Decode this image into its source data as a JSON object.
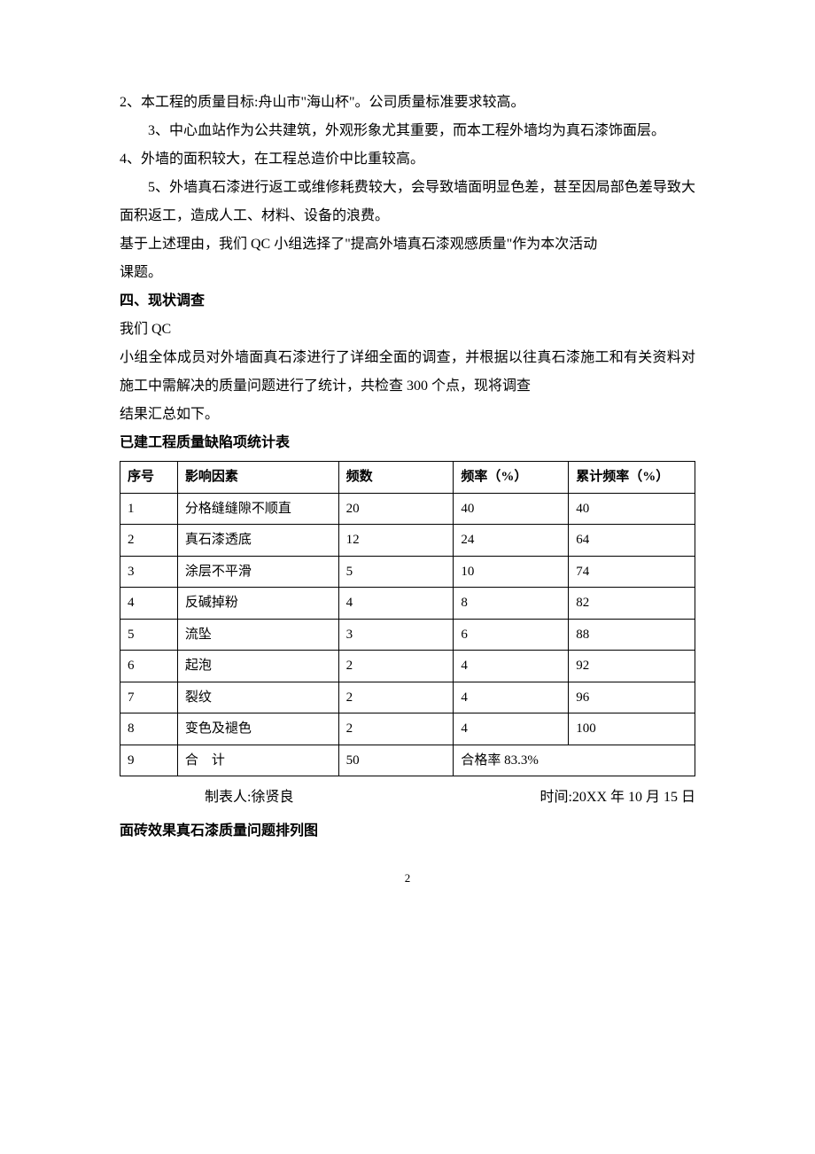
{
  "paragraphs": {
    "p1": "2、本工程的质量目标:舟山市\"海山杯\"。公司质量标准要求较高。",
    "p2": "3、中心血站作为公共建筑，外观形象尤其重要，而本工程外墙均为真石漆饰面层。",
    "p3": "4、外墙的面积较大，在工程总造价中比重较高。",
    "p4": "5、外墙真石漆进行返工或维修耗费较大，会导致墙面明显色差，甚至因局部色差导致大面积返工，造成人工、材料、设备的浪费。",
    "p5": "基于上述理由，我们 QC 小组选择了\"提高外墙真石漆观感质量\"作为本次活动",
    "p6": "课题。",
    "h1": "四、现状调查",
    "p7": "我们 QC",
    "p8": "小组全体成员对外墙面真石漆进行了详细全面的调查，并根据以往真石漆施工和有关资料对施工中需解决的质量问题进行了统计，共检查 300 个点，现将调查",
    "p9": "结果汇总如下。",
    "h2": "已建工程质量缺陷项统计表",
    "h3": "面砖效果真石漆质量问题排列图"
  },
  "table": {
    "headers": {
      "seq": "序号",
      "factor": "影响因素",
      "freq": "频数",
      "rate": "频率（%）",
      "cum": "累计频率（%）"
    },
    "rows": [
      {
        "seq": "1",
        "factor": "分格缝缝隙不顺直",
        "freq": "20",
        "rate": "40",
        "cum": "40"
      },
      {
        "seq": "2",
        "factor": "真石漆透底",
        "freq": "12",
        "rate": "24",
        "cum": "64"
      },
      {
        "seq": "3",
        "factor": "涂层不平滑",
        "freq": "5",
        "rate": "10",
        "cum": "74"
      },
      {
        "seq": "4",
        "factor": "反碱掉粉",
        "freq": "4",
        "rate": "8",
        "cum": "82"
      },
      {
        "seq": "5",
        "factor": "流坠",
        "freq": "3",
        "rate": "6",
        "cum": "88"
      },
      {
        "seq": "6",
        "factor": "起泡",
        "freq": "2",
        "rate": "4",
        "cum": "92"
      },
      {
        "seq": "7",
        "factor": "裂纹",
        "freq": "2",
        "rate": "4",
        "cum": "96"
      },
      {
        "seq": "8",
        "factor": "变色及褪色",
        "freq": "2",
        "rate": "4",
        "cum": "100"
      }
    ],
    "total_row": {
      "seq": "9",
      "factor": "合　计",
      "freq": "50",
      "merged": "合格率 83.3%"
    }
  },
  "table_footer": {
    "author": "制表人:徐贤良",
    "date": "时间:20XX 年 10 月 15 日"
  },
  "page_number": "2"
}
